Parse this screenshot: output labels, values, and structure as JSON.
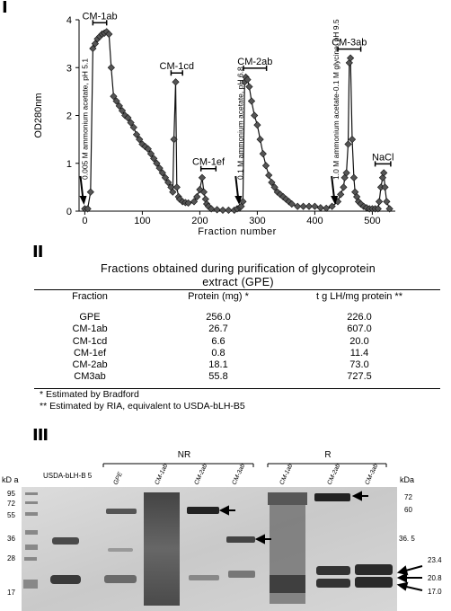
{
  "panels": {
    "one": "I",
    "two": "II",
    "three": "III"
  },
  "chart_data": {
    "type": "line",
    "xlabel": "Fraction number",
    "ylabel": "OD280nm",
    "xlim": [
      -10,
      540
    ],
    "ylim": [
      0,
      4
    ],
    "xticks": [
      "0",
      "100",
      "200",
      "300",
      "400",
      "500"
    ],
    "xtick_values": [
      0,
      100,
      200,
      300,
      400,
      500
    ],
    "yticks": [
      "0",
      "1",
      "2",
      "3",
      "4"
    ],
    "ytick_values": [
      0,
      1,
      2,
      3,
      4
    ],
    "series_color": "#555555",
    "x": [
      0,
      5,
      10,
      14,
      18,
      22,
      26,
      30,
      34,
      38,
      42,
      46,
      50,
      55,
      60,
      65,
      70,
      75,
      80,
      85,
      90,
      95,
      100,
      105,
      110,
      115,
      120,
      125,
      130,
      135,
      140,
      145,
      150,
      153,
      155,
      158,
      160,
      163,
      165,
      170,
      175,
      180,
      190,
      195,
      200,
      204,
      207,
      210,
      212,
      215,
      220,
      230,
      240,
      250,
      260,
      265,
      270,
      272,
      275,
      278,
      280,
      283,
      286,
      290,
      295,
      300,
      305,
      310,
      315,
      320,
      325,
      330,
      335,
      340,
      345,
      350,
      355,
      360,
      370,
      380,
      390,
      400,
      410,
      420,
      430,
      440,
      445,
      450,
      452,
      455,
      458,
      460,
      462,
      465,
      468,
      470,
      473,
      476,
      480,
      485,
      490,
      495,
      500,
      505,
      510,
      512,
      515,
      518,
      520,
      522,
      525,
      530
    ],
    "y": [
      0.05,
      0.05,
      0.4,
      3.4,
      3.5,
      3.6,
      3.65,
      3.7,
      3.72,
      3.75,
      3.7,
      3.0,
      2.4,
      2.3,
      2.2,
      2.1,
      2.0,
      1.95,
      1.85,
      1.75,
      1.6,
      1.5,
      1.4,
      1.35,
      1.3,
      1.2,
      1.1,
      1.0,
      0.9,
      0.8,
      0.7,
      0.6,
      0.5,
      0.4,
      1.5,
      2.7,
      0.5,
      0.3,
      0.25,
      0.2,
      0.18,
      0.17,
      0.2,
      0.3,
      0.45,
      0.7,
      0.4,
      0.25,
      0.15,
      0.1,
      0.05,
      0.03,
      0.02,
      0.02,
      0.02,
      0.05,
      0.08,
      0.1,
      0.2,
      2.7,
      2.8,
      2.75,
      2.6,
      2.3,
      2.0,
      1.8,
      1.5,
      1.2,
      0.95,
      0.75,
      0.6,
      0.5,
      0.4,
      0.35,
      0.3,
      0.25,
      0.2,
      0.15,
      0.1,
      0.1,
      0.1,
      0.1,
      0.07,
      0.06,
      0.1,
      0.2,
      0.35,
      0.5,
      0.7,
      0.8,
      1.4,
      3.1,
      3.2,
      1.5,
      0.7,
      0.4,
      0.3,
      0.2,
      0.15,
      0.1,
      0.07,
      0.05,
      0.05,
      0.05,
      0.05,
      0.2,
      0.5,
      0.7,
      0.8,
      0.5,
      0.2,
      0.05
    ],
    "brackets": [
      {
        "label": "CM-1ab",
        "from": 14,
        "to": 38
      },
      {
        "label": "CM-1cd",
        "from": 150,
        "to": 170
      },
      {
        "label": "CM-1ef",
        "from": 202,
        "to": 228
      },
      {
        "label": "CM-2ab",
        "from": 276,
        "to": 316
      },
      {
        "label": "CM-3ab",
        "from": 440,
        "to": 480
      },
      {
        "label": "NaCl",
        "from": 505,
        "to": 532
      }
    ],
    "buffers": [
      {
        "label": "0.005 M ammonium acetate, pH 5.1",
        "x": -3
      },
      {
        "label": "0.1 M ammonium acetate, pH 6.8",
        "x": 267
      },
      {
        "label": "1.0 M ammonium acetate-0.1 M glycine, pH 9.5",
        "x": 434
      }
    ],
    "arrows": [
      -3,
      267,
      434
    ]
  },
  "table": {
    "title_line1": "Fractions obtained during purification of glycoprotein",
    "title_line2": "extract (GPE)",
    "headers": [
      "Fraction",
      "Protein (mg) *",
      "t g LH/mg protein **"
    ],
    "rows": [
      [
        "GPE",
        "256.0",
        "226.0"
      ],
      [
        "CM-1ab",
        "26.7",
        "607.0"
      ],
      [
        "CM-1cd",
        "6.6",
        "20.0"
      ],
      [
        "CM-1ef",
        "0.8",
        "11.4"
      ],
      [
        "CM-2ab",
        "18.1",
        "73.0"
      ],
      [
        "CM3ab",
        "55.8",
        "727.5"
      ]
    ],
    "footnote1": "* Estimated by Bradford",
    "footnote2": "** Estimated by RIA, equivalent to USDA-bLH-B5"
  },
  "gel": {
    "group_nr": "NR",
    "group_r": "R",
    "kda_left": "kD a",
    "kda_right": "kDa",
    "standard_lane": "USDA-bLH-B 5",
    "nr_lanes": [
      "GPE",
      "CM-1ab",
      "CM-2ab",
      "CM-3ab"
    ],
    "r_lanes": [
      "CM-1ab",
      "CM-2ab",
      "CM-3ab"
    ],
    "left_markers": [
      "95",
      "72",
      "55",
      "36",
      "28",
      "17"
    ],
    "right_markers": [
      "72",
      "60",
      "36. 5",
      "23.4",
      "20.8",
      "17.0"
    ]
  }
}
